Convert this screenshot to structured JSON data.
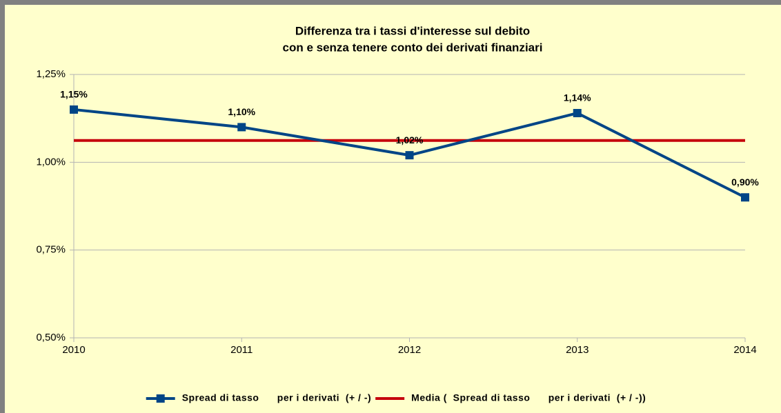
{
  "chart_data": {
    "type": "line",
    "title": [
      "Differenza tra i tassi d'interesse sul debito",
      "con e senza tenere conto dei derivati finanziari"
    ],
    "categories": [
      "2010",
      "2011",
      "2012",
      "2013",
      "2014"
    ],
    "series": [
      {
        "name": "Spread di tasso      per i derivati  (+ / -)",
        "color": "#004586",
        "values": [
          1.15,
          1.1,
          1.02,
          1.14,
          0.9
        ],
        "value_labels": [
          "1,15%",
          "1,10%",
          "1,02%",
          "1,14%",
          "0,90%"
        ],
        "marker": "square"
      },
      {
        "name": "Media (  Spread di tasso      per i derivati  (+ / -))",
        "color": "#c5000b",
        "values": [
          1.062,
          1.062,
          1.062,
          1.062,
          1.062
        ]
      }
    ],
    "ylim": [
      0.5,
      1.25
    ],
    "yticks": [
      {
        "value": 0.5,
        "label": "0,50%"
      },
      {
        "value": 0.75,
        "label": "0,75%"
      },
      {
        "value": 1.0,
        "label": "1,00%"
      },
      {
        "value": 1.25,
        "label": "1,25%"
      }
    ],
    "grid": true,
    "legend": "bottom"
  }
}
